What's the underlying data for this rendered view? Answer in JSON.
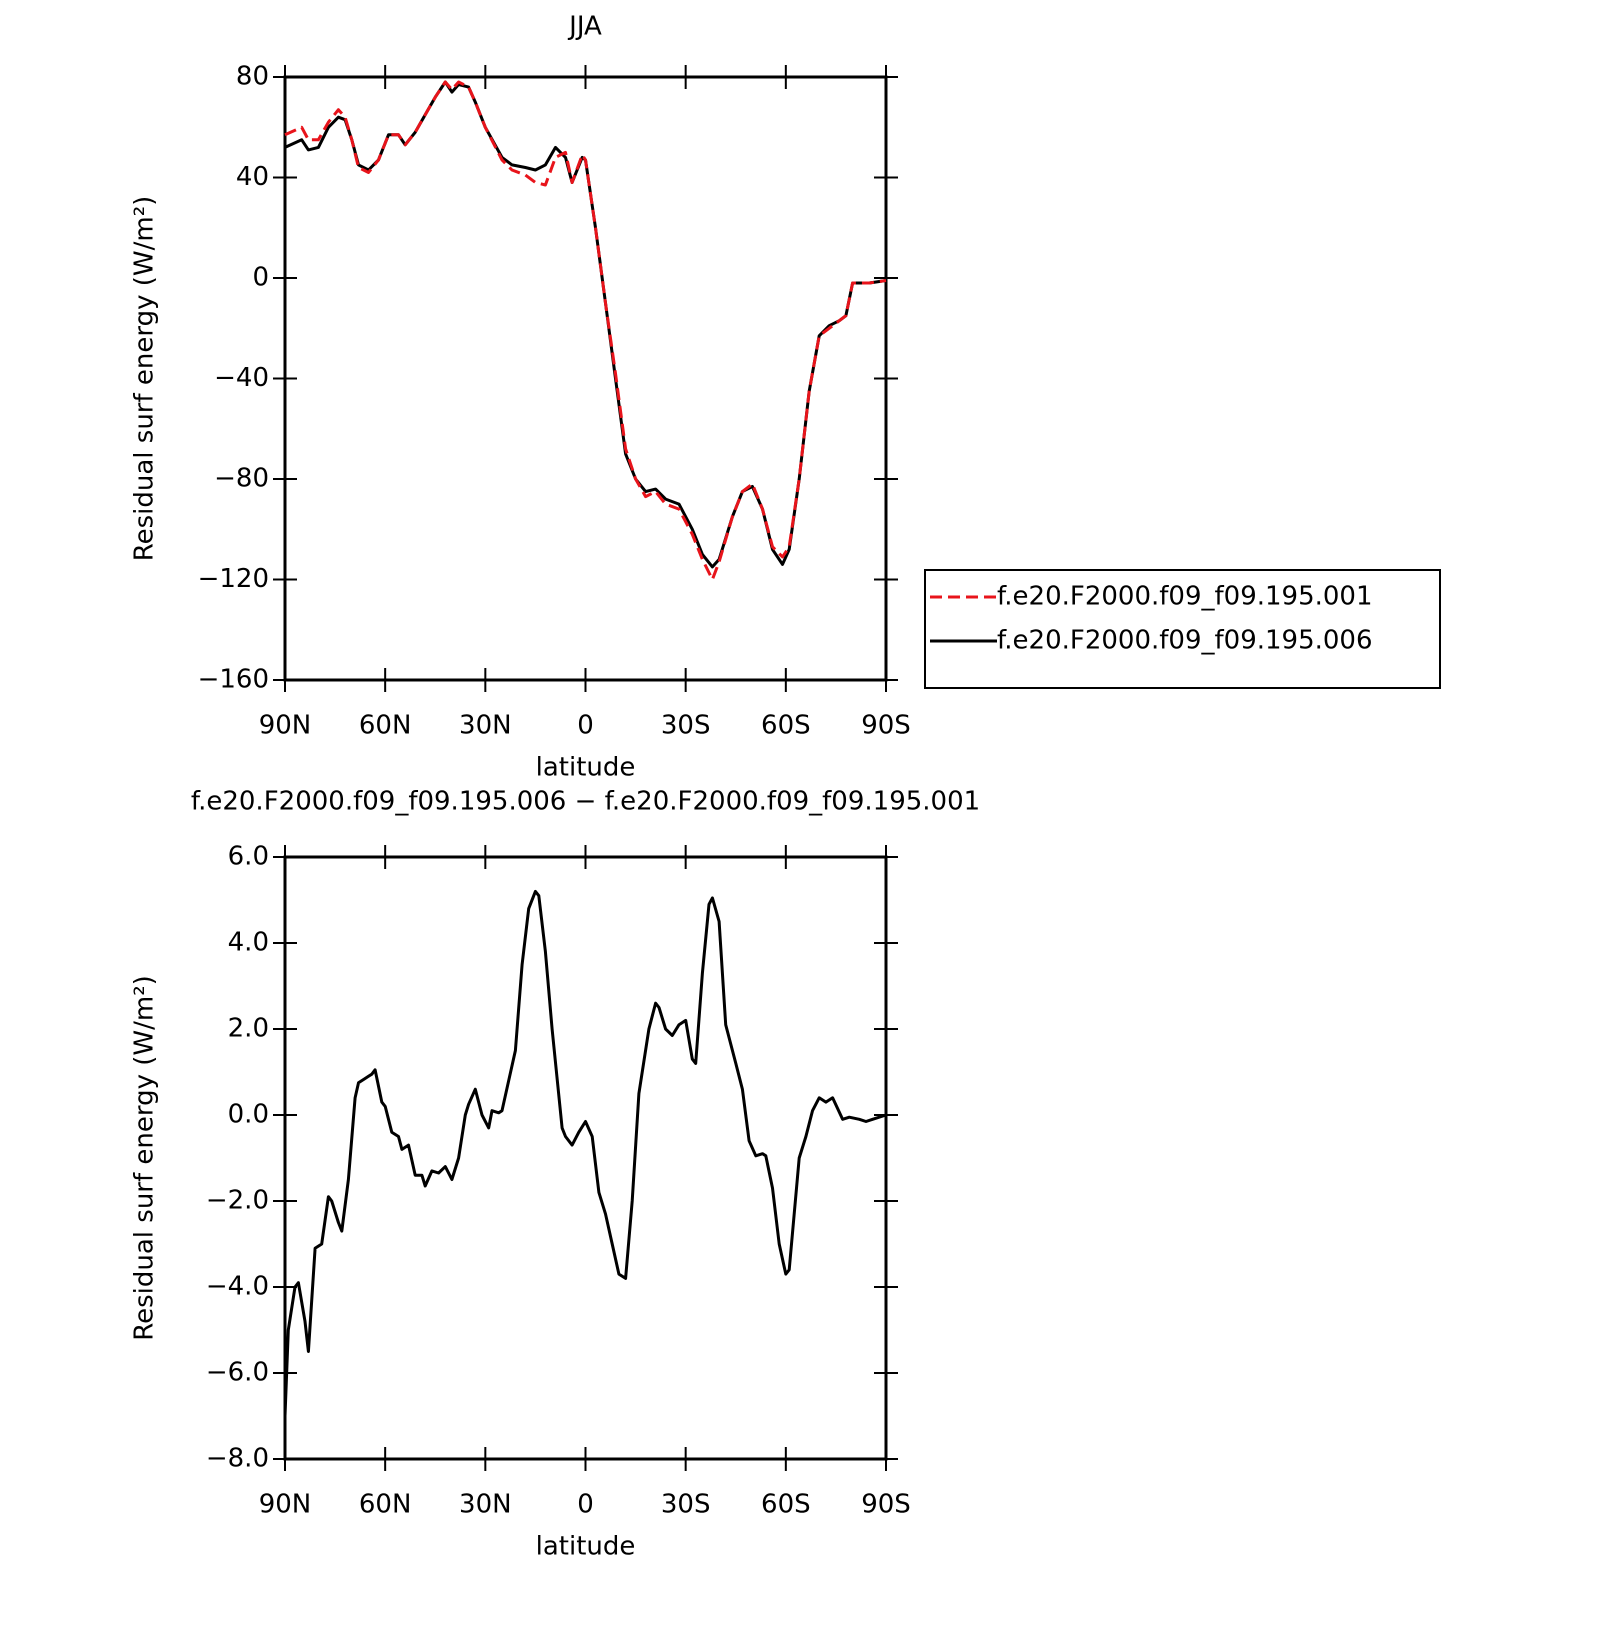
{
  "chart_data": [
    {
      "type": "line",
      "title": "JJA",
      "xlabel": "latitude",
      "ylabel": "Residual surf energy (W/m²)",
      "xlim": [
        90,
        -90
      ],
      "ylim": [
        -160,
        80
      ],
      "xticks": [
        {
          "value": 90,
          "label": "90N"
        },
        {
          "value": 60,
          "label": "60N"
        },
        {
          "value": 30,
          "label": "30N"
        },
        0,
        {
          "value": -30,
          "label": "30S"
        },
        {
          "value": -60,
          "label": "60S"
        },
        {
          "value": -90,
          "label": "90S"
        }
      ],
      "yticks": [
        80,
        40,
        0,
        {
          "value": -40,
          "label": "−40"
        },
        {
          "value": -80,
          "label": "−80"
        },
        {
          "value": -120,
          "label": "−120"
        },
        {
          "value": -160,
          "label": "−160"
        }
      ],
      "legend": "right",
      "x": [
        90,
        85,
        83,
        80,
        77,
        74,
        72,
        70,
        68,
        65,
        62,
        59,
        56,
        54,
        51,
        48,
        45,
        42,
        40,
        38,
        35,
        33,
        30,
        25,
        22,
        18,
        15,
        12,
        9,
        6,
        4,
        1,
        0,
        -3,
        -6,
        -9,
        -12,
        -15,
        -18,
        -21,
        -24,
        -28,
        -32,
        -35,
        -38,
        -40,
        -44,
        -47,
        -50,
        -53,
        -56,
        -59,
        -61,
        -64,
        -67,
        -70,
        -73,
        -76,
        -78,
        -80,
        -85,
        -90
      ],
      "series": [
        {
          "name": "f.e20.F2000.f09_f09.195.001",
          "color": "#e8141b",
          "dash": "dashed",
          "values": [
            57,
            60,
            55,
            55,
            62,
            67,
            64,
            55,
            44,
            42,
            47,
            57,
            57,
            53,
            58,
            65,
            72,
            78,
            75,
            78,
            76,
            70,
            60,
            47,
            43,
            41,
            38,
            37,
            48,
            50,
            38,
            49,
            47,
            20,
            -10,
            -38,
            -68,
            -80,
            -87,
            -85,
            -90,
            -92,
            -102,
            -112,
            -120,
            -113,
            -95,
            -85,
            -82,
            -92,
            -107,
            -111,
            -107,
            -80,
            -45,
            -23,
            -20,
            -17,
            -15,
            -2,
            -2,
            -1
          ]
        },
        {
          "name": "f.e20.F2000.f09_f09.195.006",
          "color": "#000000",
          "dash": "solid",
          "values": [
            52,
            55,
            51,
            52,
            60,
            64,
            63,
            55,
            45,
            43,
            47,
            57,
            57,
            53,
            58,
            65,
            72,
            78,
            74,
            77,
            76,
            70,
            60,
            48,
            45,
            44,
            43,
            45,
            52,
            48,
            38,
            48,
            47,
            20,
            -10,
            -40,
            -70,
            -80,
            -85,
            -84,
            -88,
            -90,
            -100,
            -110,
            -115,
            -112,
            -95,
            -85,
            -83,
            -92,
            -108,
            -114,
            -108,
            -80,
            -45,
            -23,
            -19,
            -17,
            -15,
            -2,
            -2,
            -1
          ]
        }
      ]
    },
    {
      "type": "line",
      "title": "f.e20.F2000.f09_f09.195.006 − f.e20.F2000.f09_f09.195.001",
      "xlabel": "latitude",
      "ylabel": "Residual surf energy (W/m²)",
      "xlim": [
        90,
        -90
      ],
      "ylim": [
        -8,
        6
      ],
      "xticks": [
        {
          "value": 90,
          "label": "90N"
        },
        {
          "value": 60,
          "label": "60N"
        },
        {
          "value": 30,
          "label": "30N"
        },
        0,
        {
          "value": -30,
          "label": "30S"
        },
        {
          "value": -60,
          "label": "60S"
        },
        {
          "value": -90,
          "label": "90S"
        }
      ],
      "yticks": [
        {
          "value": 6,
          "label": "6.0"
        },
        {
          "value": 4,
          "label": "4.0"
        },
        {
          "value": 2,
          "label": "2.0"
        },
        {
          "value": 0,
          "label": "0.0"
        },
        {
          "value": -2,
          "label": "−2.0"
        },
        {
          "value": -4,
          "label": "−4.0"
        },
        {
          "value": -6,
          "label": "−6.0"
        },
        {
          "value": -8,
          "label": "−8.0"
        }
      ],
      "color": "#000000",
      "x": [
        90,
        89,
        87,
        86,
        84,
        83,
        81,
        79,
        77,
        76,
        74,
        73,
        71,
        69,
        68,
        66,
        65,
        64,
        63,
        61,
        60,
        58,
        56,
        55,
        53,
        51,
        49,
        48,
        46,
        44,
        42,
        40,
        38,
        36,
        35,
        33,
        31,
        29,
        28,
        26,
        25,
        23,
        21,
        19,
        17,
        15,
        14,
        12,
        10,
        7,
        6,
        4,
        2,
        0,
        -2,
        -4,
        -6,
        -8,
        -10,
        -12,
        -14,
        -16,
        -19,
        -21,
        -22,
        -24,
        -26,
        -28,
        -30,
        -32,
        -33,
        -35,
        -37,
        -38,
        -40,
        -42,
        -45,
        -47,
        -49,
        -51,
        -53,
        -54,
        -56,
        -58,
        -60,
        -61,
        -64,
        -66,
        -68,
        -70,
        -72,
        -74,
        -77,
        -79,
        -82,
        -84,
        -86,
        -90
      ],
      "values": [
        -7.0,
        -5.0,
        -4.0,
        -3.9,
        -4.8,
        -5.5,
        -3.1,
        -3.0,
        -1.9,
        -2.0,
        -2.5,
        -2.7,
        -1.5,
        0.4,
        0.75,
        0.85,
        0.9,
        0.95,
        1.05,
        0.3,
        0.2,
        -0.4,
        -0.5,
        -0.8,
        -0.7,
        -1.4,
        -1.4,
        -1.65,
        -1.3,
        -1.35,
        -1.2,
        -1.5,
        -1.0,
        0.0,
        0.25,
        0.6,
        0.0,
        -0.3,
        0.1,
        0.05,
        0.1,
        0.8,
        1.5,
        3.5,
        4.8,
        5.2,
        5.1,
        3.8,
        2.0,
        -0.3,
        -0.5,
        -0.7,
        -0.4,
        -0.15,
        -0.5,
        -1.8,
        -2.3,
        -3.0,
        -3.7,
        -3.8,
        -2.0,
        0.5,
        2.0,
        2.6,
        2.5,
        2.0,
        1.85,
        2.1,
        2.2,
        1.3,
        1.2,
        3.3,
        4.9,
        5.05,
        4.5,
        2.1,
        1.2,
        0.6,
        -0.6,
        -0.95,
        -0.9,
        -0.95,
        -1.7,
        -3.0,
        -3.7,
        -3.6,
        -1.0,
        -0.5,
        0.1,
        0.4,
        0.3,
        0.4,
        -0.1,
        -0.05,
        -0.1,
        -0.15,
        -0.1,
        0.0
      ]
    }
  ]
}
